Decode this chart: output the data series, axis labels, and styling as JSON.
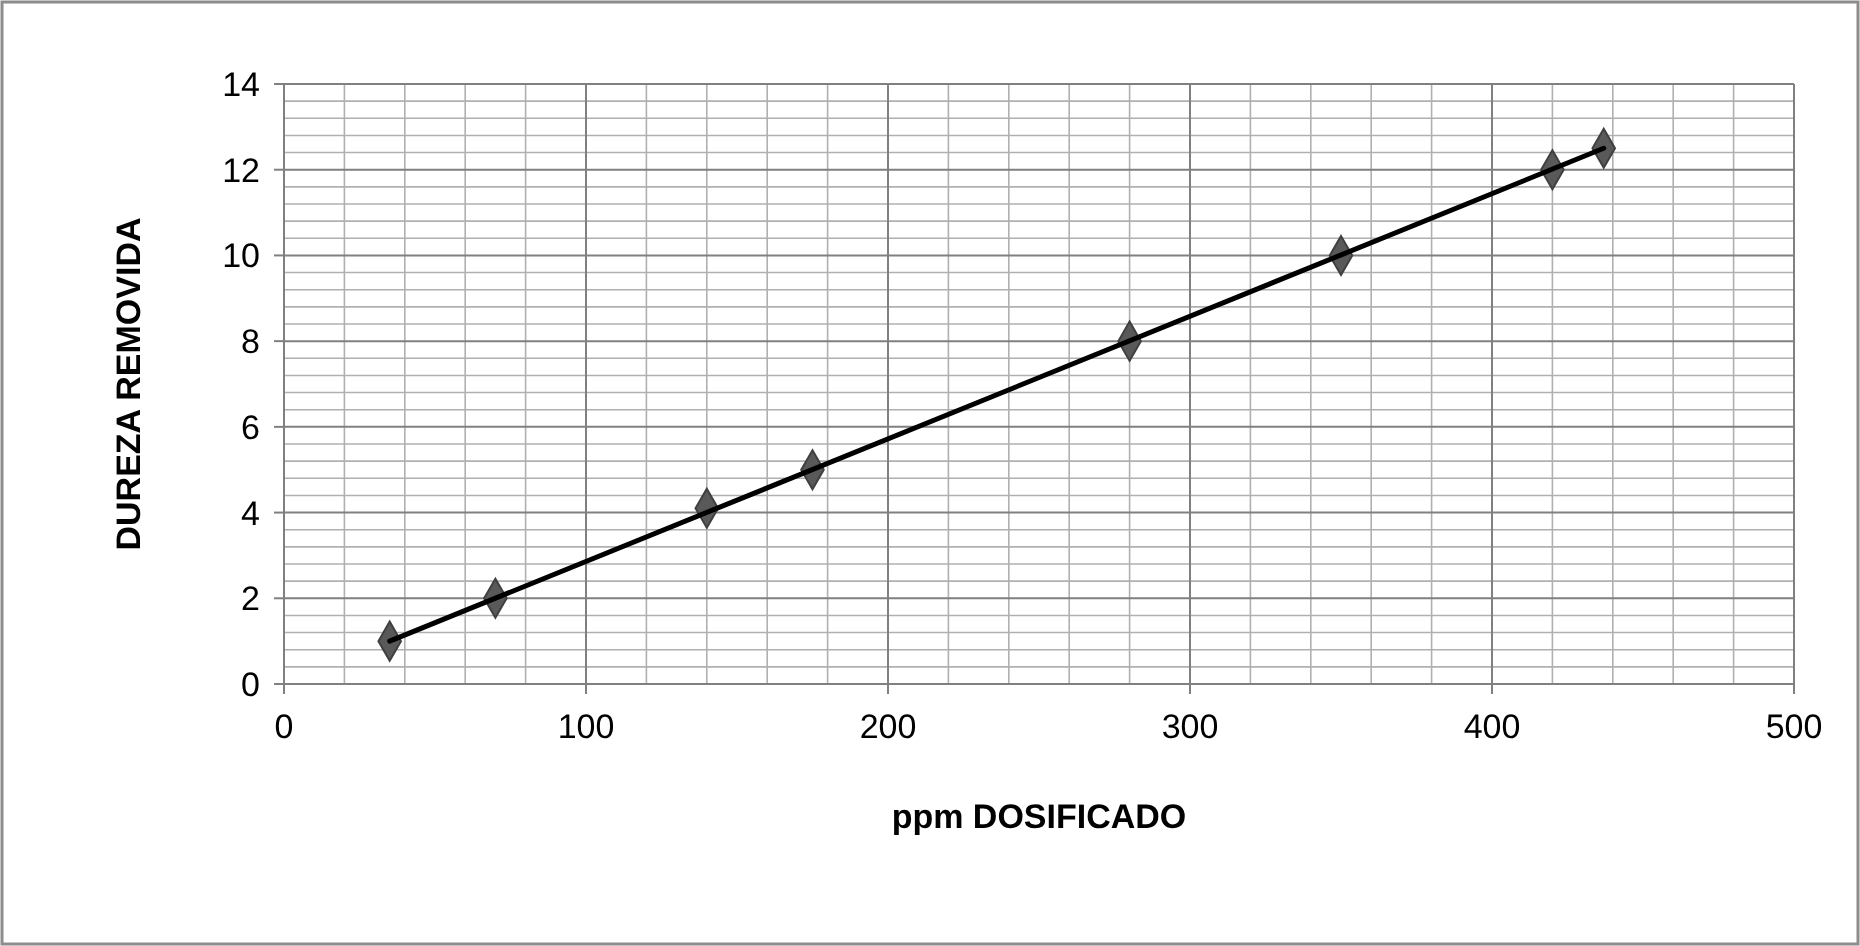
{
  "chart_data": {
    "type": "scatter",
    "xlabel": "ppm DOSIFICADO",
    "ylabel": "DUREZA REMOVIDA",
    "xlim": [
      0,
      500
    ],
    "xticks": [
      0,
      100,
      200,
      300,
      400,
      500
    ],
    "ylim": [
      0,
      14
    ],
    "yticks": [
      0,
      2,
      4,
      6,
      8,
      10,
      12,
      14
    ],
    "grid": true,
    "marker": "diamond",
    "series": [
      {
        "color": "#595959",
        "x": [
          35,
          70,
          140,
          175,
          280,
          350,
          420,
          437
        ],
        "values": [
          1,
          2,
          4.1,
          5,
          8,
          10,
          12,
          12.5
        ]
      },
      {
        "type": "line",
        "color": "#000000",
        "line_style": "solid",
        "marker": "none",
        "x": [
          35,
          437
        ],
        "values": [
          1.0,
          12.5
        ]
      }
    ]
  }
}
